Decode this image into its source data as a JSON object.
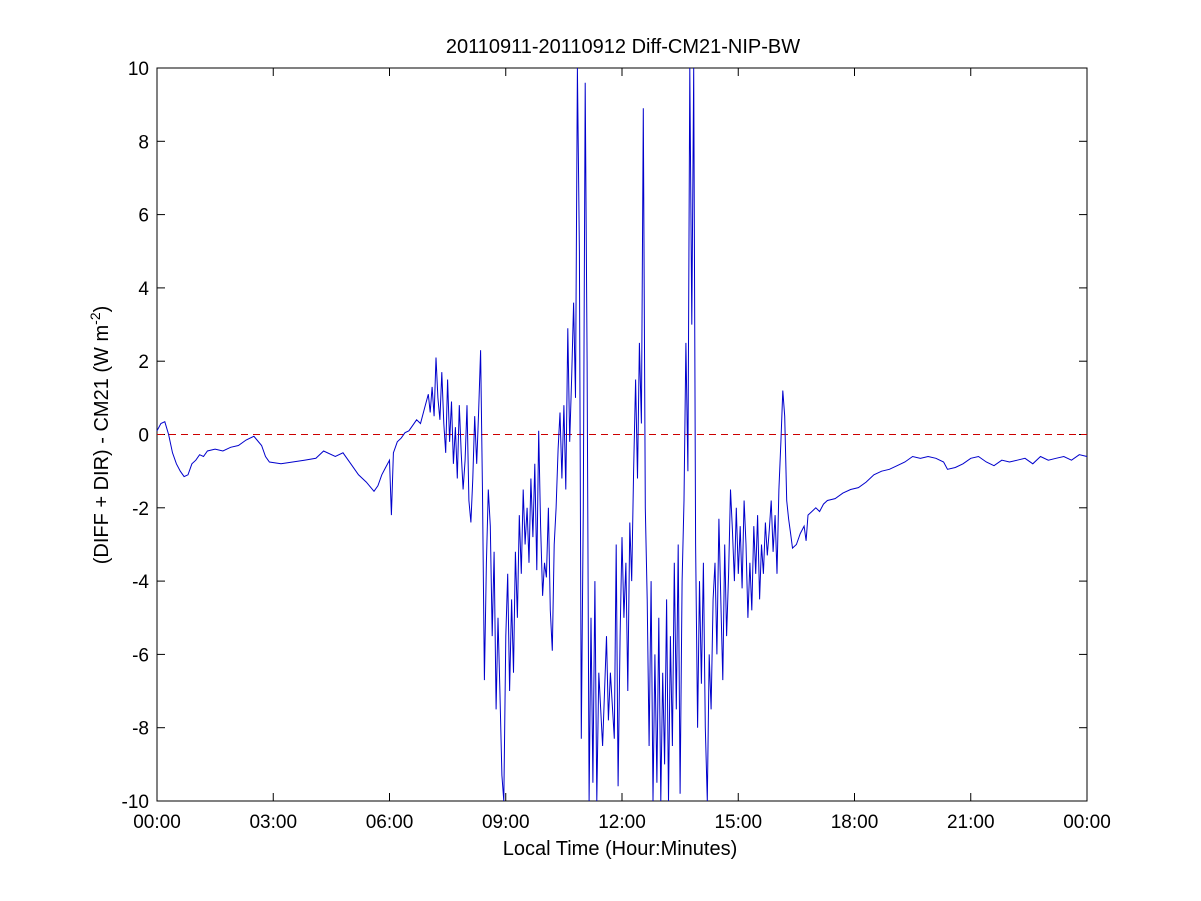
{
  "chart_data": {
    "type": "line",
    "title": "20110911-20110912 Diff-CM21-NIP-BW",
    "xlabel": "Local Time (Hour:Minutes)",
    "ylabel_main": "(DIFF + DIR) - CM21 (W m",
    "ylabel_sup": "-2",
    "ylabel_close": ")",
    "xlim": [
      0,
      24
    ],
    "ylim": [
      -10,
      10
    ],
    "x_ticks": [
      0,
      3,
      6,
      9,
      12,
      15,
      18,
      21,
      24
    ],
    "x_tick_labels": [
      "00:00",
      "03:00",
      "06:00",
      "09:00",
      "12:00",
      "15:00",
      "18:00",
      "21:00",
      "00:00"
    ],
    "y_ticks": [
      -10,
      -8,
      -6,
      -4,
      -2,
      0,
      2,
      4,
      6,
      8,
      10
    ],
    "y_tick_labels": [
      "-10",
      "-8",
      "-6",
      "-4",
      "-2",
      "0",
      "2",
      "4",
      "6",
      "8",
      "10"
    ],
    "reference_line": {
      "y": 0,
      "style": "dashed",
      "color": "#cc0000"
    },
    "series": [
      {
        "color": "#0000cc",
        "points": [
          [
            0.0,
            0.1
          ],
          [
            0.1,
            0.3
          ],
          [
            0.2,
            0.35
          ],
          [
            0.3,
            0.0
          ],
          [
            0.4,
            -0.5
          ],
          [
            0.5,
            -0.8
          ],
          [
            0.6,
            -1.0
          ],
          [
            0.7,
            -1.15
          ],
          [
            0.8,
            -1.1
          ],
          [
            0.9,
            -0.8
          ],
          [
            1.0,
            -0.7
          ],
          [
            1.1,
            -0.55
          ],
          [
            1.2,
            -0.6
          ],
          [
            1.3,
            -0.45
          ],
          [
            1.5,
            -0.4
          ],
          [
            1.7,
            -0.45
          ],
          [
            1.9,
            -0.35
          ],
          [
            2.1,
            -0.3
          ],
          [
            2.3,
            -0.15
          ],
          [
            2.5,
            -0.05
          ],
          [
            2.7,
            -0.3
          ],
          [
            2.8,
            -0.6
          ],
          [
            2.9,
            -0.75
          ],
          [
            3.2,
            -0.8
          ],
          [
            3.5,
            -0.75
          ],
          [
            3.8,
            -0.7
          ],
          [
            4.1,
            -0.65
          ],
          [
            4.3,
            -0.45
          ],
          [
            4.6,
            -0.6
          ],
          [
            4.8,
            -0.5
          ],
          [
            5.0,
            -0.8
          ],
          [
            5.2,
            -1.1
          ],
          [
            5.4,
            -1.3
          ],
          [
            5.6,
            -1.55
          ],
          [
            5.7,
            -1.4
          ],
          [
            5.8,
            -1.1
          ],
          [
            5.9,
            -0.9
          ],
          [
            6.0,
            -0.7
          ],
          [
            6.05,
            -2.2
          ],
          [
            6.1,
            -0.5
          ],
          [
            6.2,
            -0.2
          ],
          [
            6.3,
            -0.1
          ],
          [
            6.4,
            0.05
          ],
          [
            6.5,
            0.1
          ],
          [
            6.6,
            0.25
          ],
          [
            6.7,
            0.4
          ],
          [
            6.8,
            0.3
          ],
          [
            6.9,
            0.7
          ],
          [
            7.0,
            1.1
          ],
          [
            7.05,
            0.6
          ],
          [
            7.1,
            1.3
          ],
          [
            7.15,
            0.5
          ],
          [
            7.2,
            2.1
          ],
          [
            7.25,
            1.0
          ],
          [
            7.3,
            0.4
          ],
          [
            7.35,
            1.7
          ],
          [
            7.4,
            0.3
          ],
          [
            7.45,
            -0.5
          ],
          [
            7.5,
            1.5
          ],
          [
            7.55,
            -0.2
          ],
          [
            7.6,
            0.9
          ],
          [
            7.65,
            -0.8
          ],
          [
            7.7,
            0.2
          ],
          [
            7.75,
            -1.2
          ],
          [
            7.8,
            0.8
          ],
          [
            7.85,
            -0.5
          ],
          [
            7.9,
            -1.5
          ],
          [
            7.95,
            -0.7
          ],
          [
            8.0,
            0.8
          ],
          [
            8.05,
            -1.8
          ],
          [
            8.1,
            -2.4
          ],
          [
            8.15,
            -1.2
          ],
          [
            8.2,
            0.5
          ],
          [
            8.25,
            -0.8
          ],
          [
            8.3,
            0.6
          ],
          [
            8.35,
            2.3
          ],
          [
            8.4,
            -1.6
          ],
          [
            8.45,
            -6.7
          ],
          [
            8.5,
            -3.5
          ],
          [
            8.55,
            -1.5
          ],
          [
            8.6,
            -2.5
          ],
          [
            8.65,
            -5.5
          ],
          [
            8.7,
            -3.2
          ],
          [
            8.75,
            -7.5
          ],
          [
            8.8,
            -5.0
          ],
          [
            8.85,
            -7.0
          ],
          [
            8.9,
            -9.3
          ],
          [
            8.95,
            -10.0
          ],
          [
            9.0,
            -5.5
          ],
          [
            9.05,
            -3.8
          ],
          [
            9.1,
            -7.0
          ],
          [
            9.15,
            -4.5
          ],
          [
            9.2,
            -6.5
          ],
          [
            9.25,
            -3.2
          ],
          [
            9.3,
            -5.0
          ],
          [
            9.35,
            -2.2
          ],
          [
            9.4,
            -3.8
          ],
          [
            9.45,
            -1.5
          ],
          [
            9.5,
            -3.0
          ],
          [
            9.55,
            -2.0
          ],
          [
            9.6,
            -3.5
          ],
          [
            9.65,
            -1.2
          ],
          [
            9.7,
            -2.8
          ],
          [
            9.75,
            -0.8
          ],
          [
            9.8,
            -3.7
          ],
          [
            9.85,
            0.1
          ],
          [
            9.9,
            -2.5
          ],
          [
            9.95,
            -4.4
          ],
          [
            10.0,
            -3.5
          ],
          [
            10.05,
            -3.9
          ],
          [
            10.1,
            -2.0
          ],
          [
            10.15,
            -4.8
          ],
          [
            10.2,
            -5.9
          ],
          [
            10.25,
            -3.0
          ],
          [
            10.3,
            -2.0
          ],
          [
            10.35,
            -0.4
          ],
          [
            10.4,
            0.6
          ],
          [
            10.45,
            -1.2
          ],
          [
            10.5,
            0.8
          ],
          [
            10.55,
            -1.5
          ],
          [
            10.6,
            2.9
          ],
          [
            10.65,
            -0.2
          ],
          [
            10.7,
            1.5
          ],
          [
            10.75,
            3.6
          ],
          [
            10.8,
            1.0
          ],
          [
            10.85,
            10.0
          ],
          [
            10.9,
            5.0
          ],
          [
            10.95,
            -8.3
          ],
          [
            11.0,
            -2.0
          ],
          [
            11.05,
            9.6
          ],
          [
            11.1,
            2.0
          ],
          [
            11.15,
            -10.0
          ],
          [
            11.2,
            -5.0
          ],
          [
            11.25,
            -9.5
          ],
          [
            11.3,
            -4.0
          ],
          [
            11.35,
            -10.0
          ],
          [
            11.4,
            -6.5
          ],
          [
            11.5,
            -8.5
          ],
          [
            11.6,
            -5.5
          ],
          [
            11.65,
            -7.8
          ],
          [
            11.7,
            -6.5
          ],
          [
            11.8,
            -8.3
          ],
          [
            11.85,
            -3.0
          ],
          [
            11.9,
            -9.6
          ],
          [
            11.95,
            -5.5
          ],
          [
            12.0,
            -2.8
          ],
          [
            12.05,
            -5.0
          ],
          [
            12.1,
            -3.5
          ],
          [
            12.15,
            -7.0
          ],
          [
            12.2,
            -2.4
          ],
          [
            12.25,
            -4.0
          ],
          [
            12.3,
            -1.0
          ],
          [
            12.35,
            1.5
          ],
          [
            12.4,
            -1.2
          ],
          [
            12.45,
            2.5
          ],
          [
            12.5,
            0.3
          ],
          [
            12.55,
            8.9
          ],
          [
            12.6,
            -2.0
          ],
          [
            12.65,
            -4.5
          ],
          [
            12.7,
            -8.5
          ],
          [
            12.75,
            -4.0
          ],
          [
            12.8,
            -10.0
          ],
          [
            12.85,
            -6.0
          ],
          [
            12.9,
            -9.5
          ],
          [
            12.95,
            -5.0
          ],
          [
            13.0,
            -10.0
          ],
          [
            13.05,
            -6.5
          ],
          [
            13.1,
            -9.0
          ],
          [
            13.15,
            -4.5
          ],
          [
            13.2,
            -10.0
          ],
          [
            13.25,
            -5.5
          ],
          [
            13.3,
            -8.5
          ],
          [
            13.35,
            -3.5
          ],
          [
            13.4,
            -7.5
          ],
          [
            13.45,
            -3.0
          ],
          [
            13.5,
            -9.8
          ],
          [
            13.55,
            -4.0
          ],
          [
            13.6,
            -1.8
          ],
          [
            13.65,
            2.5
          ],
          [
            13.7,
            -1.0
          ],
          [
            13.75,
            10.0
          ],
          [
            13.8,
            3.0
          ],
          [
            13.85,
            10.0
          ],
          [
            13.9,
            -3.0
          ],
          [
            13.95,
            -8.0
          ],
          [
            14.0,
            -4.0
          ],
          [
            14.05,
            -6.8
          ],
          [
            14.1,
            -3.5
          ],
          [
            14.15,
            -8.0
          ],
          [
            14.2,
            -10.0
          ],
          [
            14.25,
            -6.0
          ],
          [
            14.3,
            -7.5
          ],
          [
            14.35,
            -4.5
          ],
          [
            14.4,
            -3.5
          ],
          [
            14.45,
            -6.0
          ],
          [
            14.5,
            -2.3
          ],
          [
            14.55,
            -4.5
          ],
          [
            14.6,
            -6.7
          ],
          [
            14.65,
            -3.0
          ],
          [
            14.7,
            -5.5
          ],
          [
            14.75,
            -3.8
          ],
          [
            14.8,
            -1.5
          ],
          [
            14.85,
            -2.6
          ],
          [
            14.9,
            -4.0
          ],
          [
            14.95,
            -2.0
          ],
          [
            15.0,
            -3.8
          ],
          [
            15.05,
            -2.5
          ],
          [
            15.1,
            -4.2
          ],
          [
            15.15,
            -1.8
          ],
          [
            15.2,
            -3.0
          ],
          [
            15.25,
            -5.0
          ],
          [
            15.3,
            -3.5
          ],
          [
            15.35,
            -4.8
          ],
          [
            15.4,
            -2.5
          ],
          [
            15.45,
            -3.8
          ],
          [
            15.5,
            -2.2
          ],
          [
            15.55,
            -4.5
          ],
          [
            15.6,
            -3.0
          ],
          [
            15.65,
            -3.8
          ],
          [
            15.7,
            -2.4
          ],
          [
            15.75,
            -3.3
          ],
          [
            15.8,
            -2.6
          ],
          [
            15.85,
            -1.8
          ],
          [
            15.9,
            -3.2
          ],
          [
            15.95,
            -2.2
          ],
          [
            16.0,
            -3.8
          ],
          [
            16.05,
            -1.5
          ],
          [
            16.1,
            -0.2
          ],
          [
            16.15,
            1.2
          ],
          [
            16.2,
            0.5
          ],
          [
            16.25,
            -1.8
          ],
          [
            16.3,
            -2.3
          ],
          [
            16.35,
            -2.7
          ],
          [
            16.4,
            -3.1
          ],
          [
            16.5,
            -3.0
          ],
          [
            16.6,
            -2.7
          ],
          [
            16.7,
            -2.5
          ],
          [
            16.75,
            -2.9
          ],
          [
            16.8,
            -2.2
          ],
          [
            16.9,
            -2.1
          ],
          [
            17.0,
            -2.0
          ],
          [
            17.1,
            -2.1
          ],
          [
            17.2,
            -1.9
          ],
          [
            17.3,
            -1.8
          ],
          [
            17.5,
            -1.75
          ],
          [
            17.7,
            -1.6
          ],
          [
            17.9,
            -1.5
          ],
          [
            18.1,
            -1.45
          ],
          [
            18.3,
            -1.3
          ],
          [
            18.5,
            -1.1
          ],
          [
            18.7,
            -1.0
          ],
          [
            18.9,
            -0.95
          ],
          [
            19.1,
            -0.85
          ],
          [
            19.3,
            -0.75
          ],
          [
            19.5,
            -0.6
          ],
          [
            19.7,
            -0.65
          ],
          [
            19.9,
            -0.6
          ],
          [
            20.1,
            -0.65
          ],
          [
            20.3,
            -0.75
          ],
          [
            20.4,
            -0.95
          ],
          [
            20.6,
            -0.9
          ],
          [
            20.8,
            -0.8
          ],
          [
            21.0,
            -0.65
          ],
          [
            21.2,
            -0.6
          ],
          [
            21.4,
            -0.75
          ],
          [
            21.6,
            -0.85
          ],
          [
            21.8,
            -0.7
          ],
          [
            22.0,
            -0.75
          ],
          [
            22.2,
            -0.7
          ],
          [
            22.4,
            -0.65
          ],
          [
            22.6,
            -0.8
          ],
          [
            22.8,
            -0.6
          ],
          [
            23.0,
            -0.7
          ],
          [
            23.2,
            -0.65
          ],
          [
            23.4,
            -0.6
          ],
          [
            23.6,
            -0.7
          ],
          [
            23.8,
            -0.55
          ],
          [
            24.0,
            -0.6
          ]
        ]
      }
    ]
  }
}
